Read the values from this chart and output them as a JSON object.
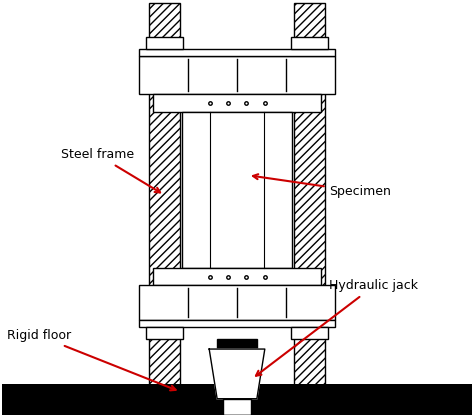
{
  "bg_color": "#ffffff",
  "line_color": "#000000",
  "red_arrow_color": "#cc0000",
  "labels": {
    "steel_frame": "Steel frame",
    "specimen": "Specimen",
    "hydraulic_jack": "Hydraulic jack",
    "rigid_floor": "Rigid floor"
  }
}
